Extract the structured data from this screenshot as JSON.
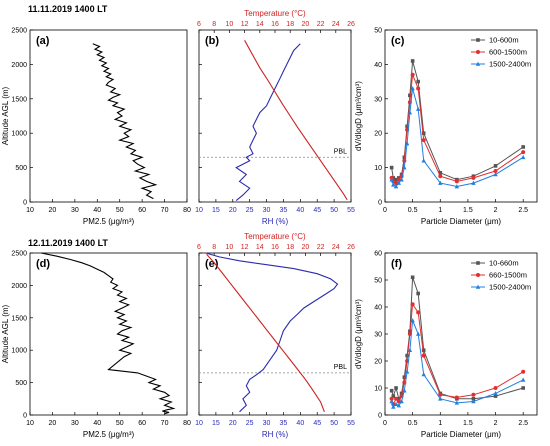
{
  "figure": {
    "row_titles": [
      "11.11.2019 1400 LT",
      "12.11.2019 1400 LT"
    ],
    "pbl_label": "PBL"
  },
  "colors": {
    "pm_line": "#000000",
    "rh_line": "#2b2bb0",
    "temp_line": "#cc2222",
    "temp_axis": "#d11f1f",
    "rh_axis": "#2a2ab8",
    "series_1": "#555555",
    "series_2": "#e03030",
    "series_3": "#2080e0",
    "pbl_line": "#888888"
  },
  "chart_data": [
    {
      "type": "line",
      "panel": "(a)",
      "xlabel": "PM2.5 (μg/m³)",
      "ylabel": "Altitude AGL (m)",
      "xlim": [
        10,
        80
      ],
      "ylim": [
        0,
        2500
      ],
      "xticks": [
        10,
        20,
        30,
        40,
        50,
        60,
        70,
        80
      ],
      "yticks": [
        0,
        500,
        1000,
        1500,
        2000,
        2500
      ],
      "series": [
        {
          "x": [
            38,
            41,
            39,
            42,
            40,
            43,
            41,
            44,
            42,
            45,
            43,
            46,
            44,
            47,
            45,
            44,
            48,
            46,
            50,
            47,
            45,
            49,
            47,
            52,
            49,
            51,
            48,
            53,
            50,
            55,
            52,
            54,
            50,
            56,
            53,
            57,
            55,
            60,
            56,
            58,
            61,
            57,
            63,
            59,
            62,
            66,
            60,
            64,
            62,
            65
          ],
          "y": [
            2300,
            2260,
            2220,
            2180,
            2140,
            2100,
            2060,
            2020,
            1980,
            1940,
            1900,
            1860,
            1820,
            1780,
            1740,
            1700,
            1650,
            1600,
            1560,
            1520,
            1480,
            1440,
            1400,
            1350,
            1300,
            1250,
            1200,
            1150,
            1100,
            1050,
            1000,
            950,
            900,
            850,
            800,
            750,
            700,
            650,
            600,
            550,
            500,
            450,
            400,
            350,
            300,
            250,
            200,
            150,
            100,
            50
          ]
        }
      ]
    },
    {
      "type": "line",
      "panel": "(b)",
      "xlabel": "RH (%)",
      "x2label": "Temperature (°C)",
      "xlim": [
        10,
        55
      ],
      "x2lim": [
        6,
        26
      ],
      "ylim": [
        0,
        2500
      ],
      "xticks": [
        10,
        15,
        20,
        25,
        30,
        35,
        40,
        45,
        50,
        55
      ],
      "x2ticks": [
        6,
        8,
        10,
        12,
        14,
        16,
        18,
        20,
        22,
        24,
        26
      ],
      "pbl_altitude": 650,
      "series": [
        {
          "axis": "RH",
          "x": [
            40,
            38,
            37,
            36,
            35,
            34,
            33,
            32,
            31,
            30,
            28,
            27,
            26,
            27,
            26,
            25,
            26,
            24,
            25,
            23,
            21,
            24,
            22,
            25,
            23,
            21
          ],
          "y": [
            2300,
            2200,
            2100,
            2000,
            1900,
            1800,
            1700,
            1600,
            1500,
            1400,
            1300,
            1200,
            1100,
            1000,
            900,
            800,
            700,
            650,
            600,
            550,
            500,
            400,
            300,
            200,
            100,
            20
          ]
        },
        {
          "axis": "Temperature",
          "x": [
            12,
            13,
            14,
            15,
            16,
            17,
            18,
            19,
            20,
            21,
            22,
            23,
            24,
            25,
            25.5
          ],
          "y": [
            2350,
            2150,
            1950,
            1780,
            1600,
            1420,
            1250,
            1080,
            920,
            760,
            600,
            440,
            280,
            120,
            30
          ]
        }
      ]
    },
    {
      "type": "line",
      "panel": "(c)",
      "xlabel": "Particle Diameter (μm)",
      "ylabel": "dV/dlogD (μm³/cm³)",
      "xlim": [
        0,
        2.75
      ],
      "ylim": [
        0,
        50
      ],
      "xticks": [
        0.0,
        0.5,
        1.0,
        1.5,
        2.0,
        2.5
      ],
      "yticks": [
        0,
        10,
        20,
        30,
        40,
        50
      ],
      "legend": "top-right",
      "x": [
        0.12,
        0.15,
        0.2,
        0.25,
        0.3,
        0.35,
        0.4,
        0.45,
        0.5,
        0.6,
        0.7,
        1.0,
        1.3,
        1.6,
        2.0,
        2.5
      ],
      "series": [
        {
          "name": "10-600m",
          "values": [
            10,
            7,
            6.5,
            7,
            8,
            13,
            22,
            31,
            41,
            35,
            20,
            8.5,
            6.5,
            7.5,
            10.5,
            16
          ]
        },
        {
          "name": "600-1500m",
          "values": [
            7,
            6,
            5.5,
            6.5,
            7.5,
            12,
            21,
            29,
            37,
            33,
            18,
            7.5,
            6,
            7,
            9,
            14.5
          ]
        },
        {
          "name": "1500-2400m",
          "values": [
            6.5,
            5,
            4.5,
            5.5,
            6.5,
            10,
            17,
            26,
            33,
            27,
            12,
            5.5,
            4.5,
            5.5,
            8,
            13
          ]
        }
      ]
    },
    {
      "type": "line",
      "panel": "(d)",
      "xlabel": "PM2.5 (μg/m³)",
      "ylabel": "Altitude AGL (m)",
      "xlim": [
        10,
        80
      ],
      "ylim": [
        0,
        2500
      ],
      "xticks": [
        10,
        20,
        30,
        40,
        50,
        60,
        70,
        80
      ],
      "yticks": [
        0,
        500,
        1000,
        1500,
        2000,
        2500
      ],
      "series": [
        {
          "x": [
            15,
            22,
            28,
            33,
            37,
            40,
            43,
            45,
            47,
            46,
            49,
            47,
            51,
            49,
            53,
            50,
            54,
            51,
            48,
            52,
            49,
            53,
            50,
            55,
            51,
            49,
            54,
            51,
            56,
            53,
            50,
            55,
            52,
            45,
            58,
            62,
            66,
            63,
            68,
            65,
            70,
            72,
            68,
            73,
            70,
            74,
            71,
            69,
            72,
            70
          ],
          "y": [
            2500,
            2450,
            2400,
            2350,
            2300,
            2250,
            2200,
            2150,
            2100,
            2050,
            2000,
            1950,
            1900,
            1850,
            1800,
            1750,
            1700,
            1650,
            1600,
            1550,
            1500,
            1450,
            1400,
            1350,
            1300,
            1250,
            1200,
            1150,
            1100,
            1050,
            1000,
            950,
            900,
            700,
            650,
            600,
            550,
            500,
            450,
            400,
            350,
            300,
            250,
            200,
            150,
            100,
            80,
            60,
            40,
            20
          ]
        }
      ]
    },
    {
      "type": "line",
      "panel": "(e)",
      "xlabel": "RH (%)",
      "x2label": "Temperature (°C)",
      "xlim": [
        10,
        55
      ],
      "x2lim": [
        6,
        26
      ],
      "ylim": [
        0,
        2500
      ],
      "xticks": [
        10,
        15,
        20,
        25,
        30,
        35,
        40,
        45,
        50,
        55
      ],
      "x2ticks": [
        6,
        8,
        10,
        12,
        14,
        16,
        18,
        20,
        22,
        24,
        26
      ],
      "pbl_altitude": 650,
      "series": [
        {
          "axis": "RH",
          "x": [
            12,
            16,
            22,
            30,
            38,
            45,
            49,
            51,
            50,
            47,
            44,
            41,
            39,
            37,
            35,
            34,
            33,
            31,
            29,
            27,
            25,
            24,
            25,
            23,
            24,
            22
          ],
          "y": [
            2500,
            2440,
            2380,
            2320,
            2260,
            2180,
            2100,
            2020,
            1950,
            1850,
            1750,
            1650,
            1550,
            1450,
            1300,
            1150,
            1000,
            850,
            700,
            620,
            550,
            450,
            350,
            250,
            150,
            50
          ]
        },
        {
          "axis": "Temperature",
          "x": [
            7,
            8,
            9,
            10,
            11,
            12,
            13,
            14,
            15,
            16,
            17,
            18,
            19,
            20,
            21,
            22,
            22.5
          ],
          "y": [
            2480,
            2350,
            2200,
            2050,
            1900,
            1750,
            1600,
            1450,
            1300,
            1150,
            1000,
            850,
            700,
            550,
            380,
            200,
            50
          ]
        }
      ]
    },
    {
      "type": "line",
      "panel": "(f)",
      "xlabel": "Particle Diameter (μm)",
      "ylabel": "dV/dlogD (μm³/cm³)",
      "xlim": [
        0,
        2.75
      ],
      "ylim": [
        0,
        60
      ],
      "xticks": [
        0.0,
        0.5,
        1.0,
        1.5,
        2.0,
        2.5
      ],
      "yticks": [
        0,
        10,
        20,
        30,
        40,
        50,
        60
      ],
      "legend": "top-right",
      "x": [
        0.12,
        0.15,
        0.2,
        0.25,
        0.3,
        0.35,
        0.4,
        0.45,
        0.5,
        0.6,
        0.7,
        1.0,
        1.3,
        1.6,
        2.0,
        2.5
      ],
      "series": [
        {
          "name": "10-660m",
          "values": [
            9,
            7,
            10,
            6,
            8,
            14,
            22,
            31,
            51,
            45,
            24,
            8,
            6,
            6,
            7,
            10
          ]
        },
        {
          "name": "660-1500m",
          "values": [
            6,
            4,
            6,
            5,
            7,
            12,
            20,
            30,
            41,
            38,
            22,
            7.5,
            6.5,
            7.5,
            10,
            16
          ]
        },
        {
          "name": "1500-2400m",
          "values": [
            5,
            3,
            4,
            3.5,
            5,
            9,
            16,
            24,
            35,
            30,
            15,
            6,
            4.5,
            5,
            8,
            13
          ]
        }
      ]
    }
  ]
}
